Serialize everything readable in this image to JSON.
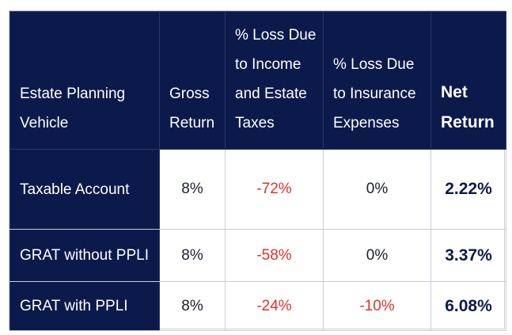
{
  "table": {
    "headers": [
      "Estate Planning Vehicle",
      "Gross Return",
      "% Loss Due to Income and Estate Taxes",
      "% Loss Due to Insurance Expenses",
      "Net Return"
    ],
    "rows": [
      {
        "vehicle": "Taxable Account",
        "gross_return": "8%",
        "loss_taxes": "-72%",
        "loss_insurance": "0%",
        "net_return": "2.22%"
      },
      {
        "vehicle": "GRAT without PPLI",
        "gross_return": "8%",
        "loss_taxes": "-58%",
        "loss_insurance": "0%",
        "net_return": "3.37%"
      },
      {
        "vehicle": "GRAT with PPLI",
        "gross_return": "8%",
        "loss_taxes": "-24%",
        "loss_insurance": "-10%",
        "net_return": "6.08%"
      }
    ]
  },
  "colors": {
    "header_bg": "#0c1a4b",
    "header_text": "#ffffff",
    "negative": "#e0322a",
    "net_text": "#0c1a4b"
  }
}
